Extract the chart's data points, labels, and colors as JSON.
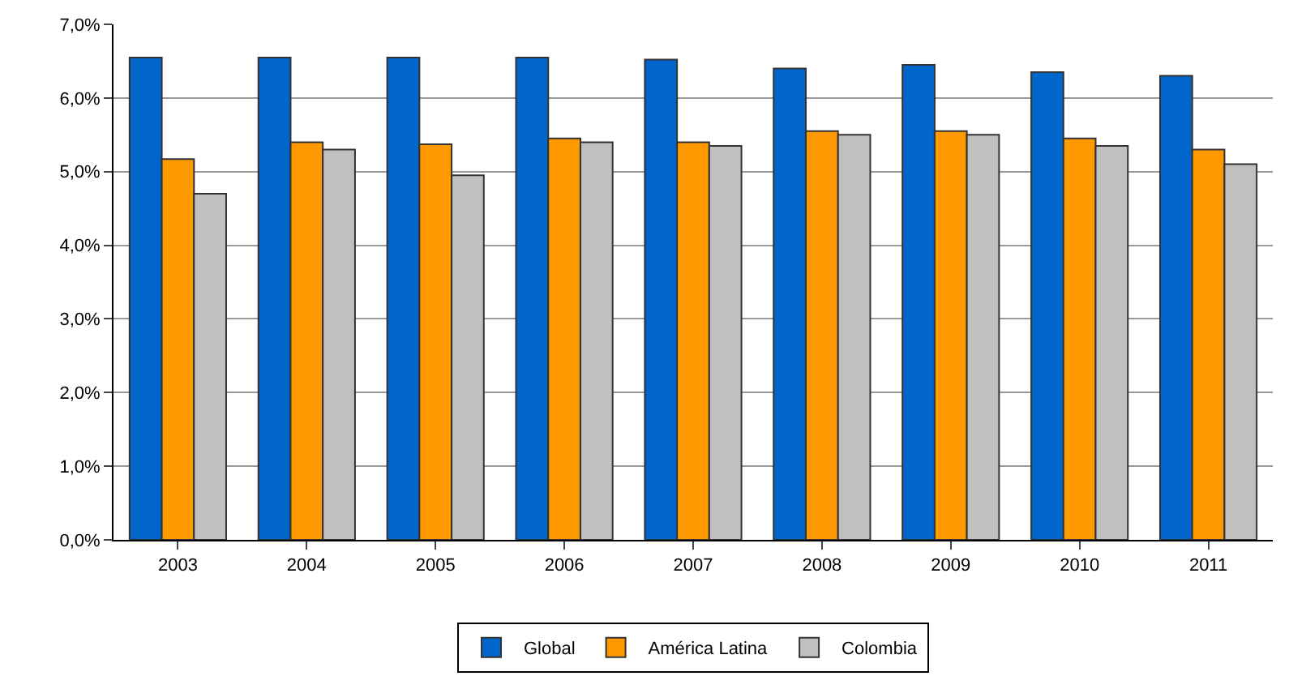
{
  "chart_data": {
    "type": "bar",
    "categories": [
      "2003",
      "2004",
      "2005",
      "2006",
      "2007",
      "2008",
      "2009",
      "2010",
      "2011"
    ],
    "series": [
      {
        "name": "Global",
        "color": "#0066cc",
        "values": [
          6.55,
          6.55,
          6.55,
          6.55,
          6.52,
          6.4,
          6.45,
          6.35,
          6.3
        ]
      },
      {
        "name": "América Latina",
        "color": "#ff9900",
        "values": [
          5.17,
          5.4,
          5.37,
          5.45,
          5.4,
          5.55,
          5.55,
          5.45,
          5.3
        ]
      },
      {
        "name": "Colombia",
        "color": "#c0c0c0",
        "values": [
          4.7,
          5.3,
          4.95,
          5.4,
          5.35,
          5.5,
          5.5,
          5.35,
          5.1
        ]
      }
    ],
    "ylim": [
      0,
      7
    ],
    "yticks": [
      {
        "value": 0,
        "label": "0,0%"
      },
      {
        "value": 1,
        "label": "1,0%"
      },
      {
        "value": 2,
        "label": "2,0%"
      },
      {
        "value": 3,
        "label": "3,0%"
      },
      {
        "value": 4,
        "label": "4,0%"
      },
      {
        "value": 5,
        "label": "5,0%"
      },
      {
        "value": 6,
        "label": "6,0%"
      },
      {
        "value": 7,
        "label": "7,0%"
      }
    ],
    "grid": "y",
    "legend": "bottom"
  }
}
